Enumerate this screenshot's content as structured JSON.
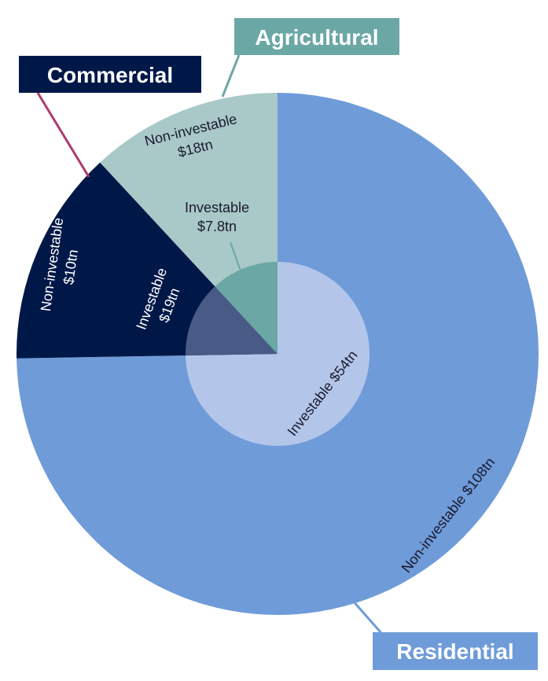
{
  "chart_data": {
    "type": "pie",
    "categories": [
      {
        "name": "Residential",
        "color": "#6f9bd9",
        "investable": {
          "label": "Investable $54tn",
          "value": 54,
          "color": "#b3c6ea",
          "text_color": "#1a1a2e"
        },
        "non_investable": {
          "label": "Non-investable $108tn",
          "value": 108,
          "text_color": "#1a1a2e"
        }
      },
      {
        "name": "Commercial",
        "color": "#001848",
        "investable": {
          "label_lines": [
            "Investable",
            "$19tn"
          ],
          "value": 19,
          "color": "#4a5a86",
          "text_color": "#ffffff"
        },
        "non_investable": {
          "label_lines": [
            "Non-investable",
            "$10tn"
          ],
          "value": 10,
          "text_color": "#ffffff"
        }
      },
      {
        "name": "Agricultural",
        "color": "#a9c8c8",
        "investable": {
          "label_lines": [
            "Investable",
            "$7.8tn"
          ],
          "value": 7.8,
          "color": "#6aa7a5",
          "text_color": "#1a1a2e"
        },
        "non_investable": {
          "label_lines": [
            "Non-investable",
            "$18tn"
          ],
          "value": 18,
          "text_color": "#1a1a2e"
        }
      }
    ],
    "leader_colors": {
      "Commercial": "#b03a6e",
      "Agricultural": "#6aa7a5",
      "Residential": "#6f9bd9",
      "Investable $7.8tn": "#6aa7a5"
    }
  }
}
